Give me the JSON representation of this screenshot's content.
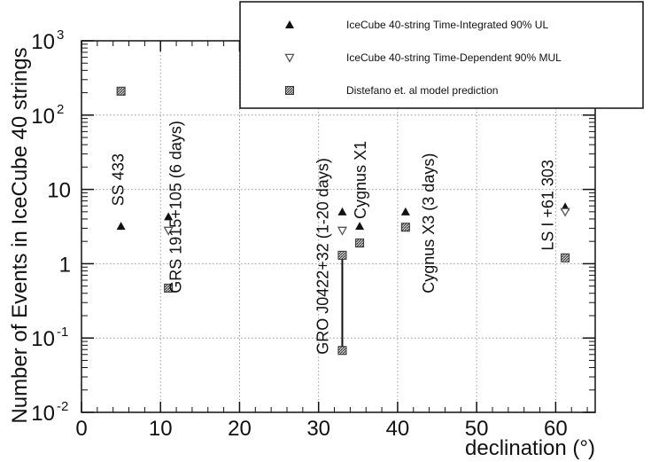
{
  "chart_data": {
    "type": "scatter",
    "title": "",
    "xlabel": "declination (°)",
    "ylabel": "Number of Events in IceCube 40 strings",
    "xlim": [
      0,
      65
    ],
    "ylim": [
      0.01,
      1000
    ],
    "yscale": "log",
    "grid": true,
    "legend_placement": "top-right",
    "x_ticks": [
      0,
      10,
      20,
      30,
      40,
      50,
      60
    ],
    "y_ticks": [
      {
        "value": 0.01,
        "base": "10",
        "exp": "-2"
      },
      {
        "value": 0.1,
        "base": "10",
        "exp": "-1"
      },
      {
        "value": 1,
        "base": "1",
        "exp": ""
      },
      {
        "value": 10,
        "base": "10",
        "exp": ""
      },
      {
        "value": 100,
        "base": "10",
        "exp": "2"
      },
      {
        "value": 1000,
        "base": "10",
        "exp": "3"
      }
    ],
    "series": [
      {
        "name": "IceCube 40-string Time-Integrated 90% UL",
        "marker": "triangle-up-filled",
        "color": "#111111",
        "points": [
          {
            "x": 5.0,
            "y": 3.2
          },
          {
            "x": 11.0,
            "y": 4.3
          },
          {
            "x": 33.0,
            "y": 5.0
          },
          {
            "x": 35.2,
            "y": 3.2
          },
          {
            "x": 41.0,
            "y": 5.0
          },
          {
            "x": 61.2,
            "y": 5.8
          }
        ]
      },
      {
        "name": "IceCube 40-string Time-Dependent 90% MUL",
        "marker": "triangle-down-open",
        "color": "#555555",
        "points": [
          {
            "x": 11.0,
            "y": 2.8
          },
          {
            "x": 33.0,
            "y": 2.8
          },
          {
            "x": 61.2,
            "y": 5.0
          }
        ]
      },
      {
        "name": "Distefano et. al model prediction",
        "marker": "square-hatched",
        "color": "#444444",
        "points": [
          {
            "x": 5.0,
            "y": 210
          },
          {
            "x": 11.0,
            "y": 0.47
          },
          {
            "x": 33.0,
            "y": 1.3
          },
          {
            "x": 33.0,
            "y": 0.068
          },
          {
            "x": 35.2,
            "y": 1.9
          },
          {
            "x": 41.0,
            "y": 3.1
          },
          {
            "x": 61.2,
            "y": 1.2
          }
        ]
      }
    ],
    "error_bars": [
      {
        "x": 33.0,
        "y_low": 0.068,
        "y_high": 1.3
      }
    ],
    "annotations": [
      {
        "text": "SS 433",
        "x": 5.3,
        "y": 6
      },
      {
        "text": "GRS 1915+105 (6 days)",
        "x": 12.6,
        "y": 0.4
      },
      {
        "text": "GRO J0422+32 (1-20 days)",
        "x": 31.2,
        "y": 0.06
      },
      {
        "text": "Cygnus X1",
        "x": 36.0,
        "y": 4
      },
      {
        "text": "Cygnus X3 (3 days)",
        "x": 44.6,
        "y": 0.4
      },
      {
        "text": "LS I +61 303",
        "x": 59.7,
        "y": 1.5
      }
    ]
  }
}
